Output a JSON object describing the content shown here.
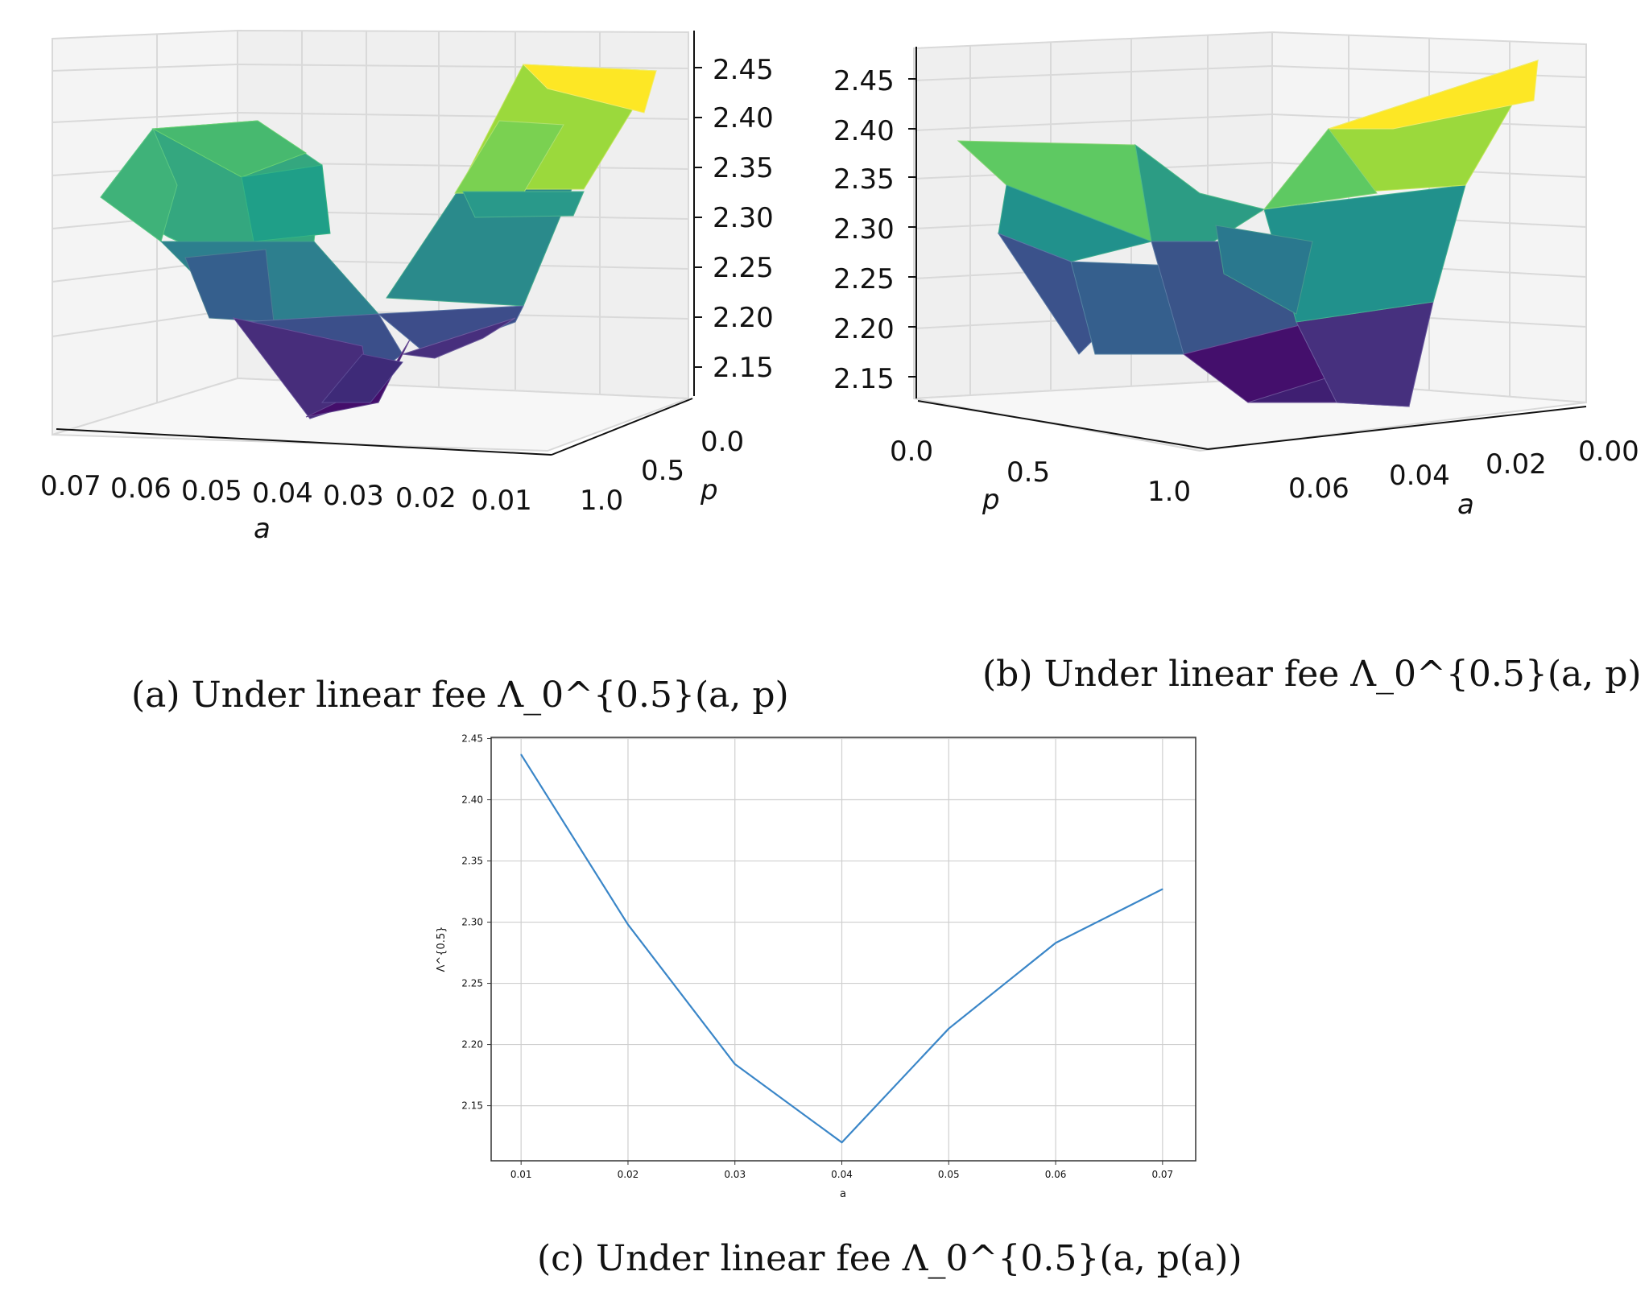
{
  "figure": {
    "panels": [
      {
        "caption_label": "(a)",
        "caption_text": "Under linear fee",
        "caption_math": "Λ_0^{0.5}(a, p)",
        "axis_x_label": "a",
        "axis_y_label": "p",
        "x_ticks": [
          "0.07",
          "0.06",
          "0.05",
          "0.04",
          "0.03",
          "0.02",
          "0.01"
        ],
        "y_ticks": [
          "0.0",
          "0.5",
          "1.0"
        ],
        "z_ticks": [
          "2.45",
          "2.40",
          "2.35",
          "2.30",
          "2.25",
          "2.20",
          "2.15"
        ]
      },
      {
        "caption_label": "(b)",
        "caption_text": "Under linear fee",
        "caption_math": "Λ_0^{0.5}(a, p)",
        "axis_x_label": "p",
        "axis_y_label": "a",
        "x_ticks": [
          "0.0",
          "0.5",
          "1.0"
        ],
        "y_ticks": [
          "0.06",
          "0.04",
          "0.02",
          "0.00"
        ],
        "z_ticks": [
          "2.45",
          "2.40",
          "2.35",
          "2.30",
          "2.25",
          "2.20",
          "2.15"
        ]
      },
      {
        "caption_label": "(c)",
        "caption_text": "Under linear fee",
        "caption_math": "Λ_0^{0.5}(a, p(a))"
      }
    ],
    "colors": {
      "line": "#3a86c8",
      "viridis": [
        "#440154",
        "#3b528b",
        "#21918c",
        "#5ec962",
        "#fde725"
      ],
      "grid": "#cfcfcf"
    }
  },
  "chart_data": [
    {
      "type": "surface",
      "title": "",
      "xlabel": "a",
      "ylabel": "p",
      "x_tick_labels": [
        "0.07",
        "0.06",
        "0.05",
        "0.04",
        "0.03",
        "0.02",
        "0.01"
      ],
      "y_tick_labels": [
        "0.0",
        "0.5",
        "1.0"
      ],
      "z_tick_labels": [
        "2.45",
        "2.40",
        "2.35",
        "2.30",
        "2.25",
        "2.20",
        "2.15"
      ],
      "zlim": [
        2.12,
        2.46
      ],
      "colormap": "viridis"
    },
    {
      "type": "surface",
      "title": "",
      "xlabel": "p",
      "ylabel": "a",
      "x_tick_labels": [
        "0.0",
        "0.5",
        "1.0"
      ],
      "y_tick_labels": [
        "0.06",
        "0.04",
        "0.02",
        "0.00"
      ],
      "z_tick_labels": [
        "2.45",
        "2.40",
        "2.35",
        "2.30",
        "2.25",
        "2.20",
        "2.15"
      ],
      "zlim": [
        2.12,
        2.46
      ],
      "colormap": "viridis"
    },
    {
      "type": "line",
      "title": "",
      "xlabel": "a",
      "ylabel": "Λ^{0.5}",
      "x": [
        0.01,
        0.02,
        0.03,
        0.04,
        0.05,
        0.06,
        0.07
      ],
      "series": [
        {
          "values": [
            2.437,
            2.298,
            2.184,
            2.12,
            2.213,
            2.283,
            2.327
          ]
        }
      ],
      "xlim": [
        0.0072,
        0.0731
      ],
      "ylim": [
        2.105,
        2.451
      ],
      "x_ticks": [
        "0.01",
        "0.02",
        "0.03",
        "0.04",
        "0.05",
        "0.06",
        "0.07"
      ],
      "y_ticks": [
        "2.45",
        "2.40",
        "2.35",
        "2.30",
        "2.25",
        "2.20",
        "2.15"
      ],
      "grid": true
    }
  ]
}
